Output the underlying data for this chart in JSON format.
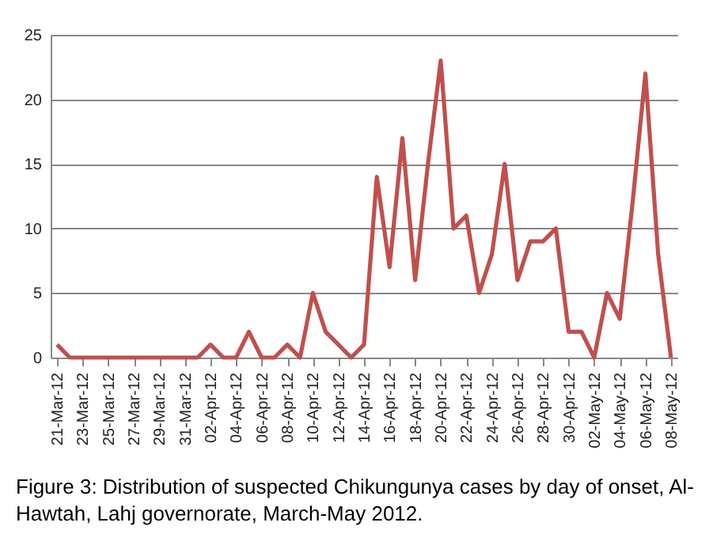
{
  "chart_data": {
    "type": "line",
    "categories": [
      "21-Mar-12",
      null,
      "23-Mar-12",
      null,
      "25-Mar-12",
      null,
      "27-Mar-12",
      null,
      "29-Mar-12",
      null,
      "31-Mar-12",
      null,
      "02-Apr-12",
      null,
      "04-Apr-12",
      null,
      "06-Apr-12",
      null,
      "08-Apr-12",
      null,
      "10-Apr-12",
      null,
      "12-Apr-12",
      null,
      "14-Apr-12",
      null,
      "16-Apr-12",
      null,
      "18-Apr-12",
      null,
      "20-Apr-12",
      null,
      "22-Apr-12",
      null,
      "24-Apr-12",
      null,
      "26-Apr-12",
      null,
      "28-Apr-12",
      null,
      "30-Apr-12",
      null,
      "02-May-12",
      null,
      "04-May-12",
      null,
      "06-May-12",
      null,
      "08-May-12"
    ],
    "series": [
      {
        "color": "#c0504d",
        "values": [
          1,
          0,
          0,
          0,
          0,
          0,
          0,
          0,
          0,
          0,
          0,
          0,
          1,
          0,
          0,
          2,
          0,
          0,
          1,
          0,
          5,
          2,
          1,
          0,
          1,
          14,
          7,
          17,
          6,
          15,
          23,
          10,
          11,
          5,
          8,
          15,
          6,
          9,
          9,
          10,
          2,
          2,
          0,
          5,
          3,
          12,
          22,
          8,
          0
        ]
      }
    ],
    "ylim": [
      0,
      25
    ],
    "yticks": [
      0,
      5,
      10,
      15,
      20,
      25
    ],
    "grid": "y",
    "marker": "none",
    "line_style": "solid",
    "annotations": [
      "Figure 3: Distribution of suspected Chikungunya cases by day of onset, Al-Hawtah, Lahj governorate, March-May 2012."
    ]
  }
}
